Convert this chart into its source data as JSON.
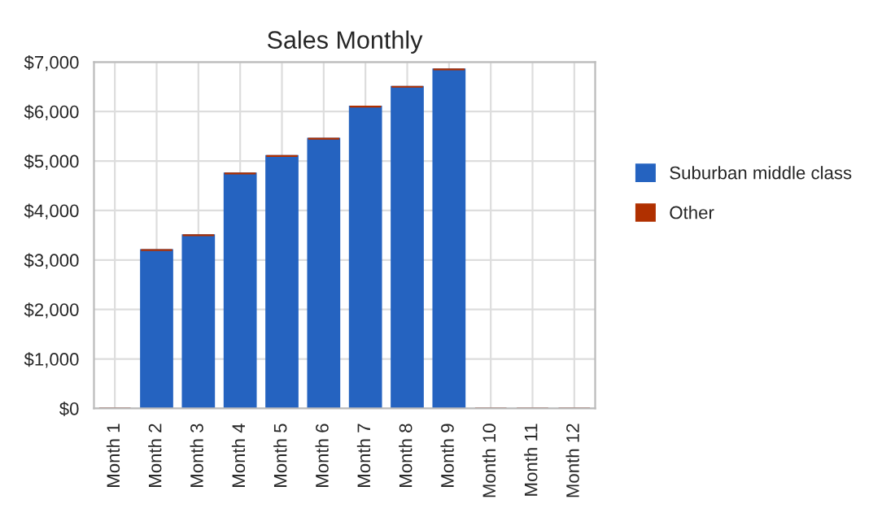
{
  "chart_data": {
    "type": "bar",
    "title": "Sales Monthly",
    "stacked": true,
    "categories": [
      "Month 1",
      "Month 2",
      "Month 3",
      "Month 4",
      "Month 5",
      "Month 6",
      "Month 7",
      "Month 8",
      "Month 9",
      "Month 10",
      "Month 11",
      "Month 12"
    ],
    "series": [
      {
        "name": "Suburban middle class",
        "color": "#2563c0",
        "values": [
          0,
          3200,
          3500,
          4750,
          5100,
          5450,
          6100,
          6500,
          6850,
          0,
          0,
          0
        ]
      },
      {
        "name": "Other",
        "color": "#b03000",
        "values": [
          0,
          0,
          0,
          0,
          0,
          0,
          0,
          0,
          0,
          0,
          0,
          0
        ]
      }
    ],
    "ylim": [
      0,
      7000
    ],
    "yticks": [
      {
        "value": 0,
        "label": "$0"
      },
      {
        "value": 1000,
        "label": "$1,000"
      },
      {
        "value": 2000,
        "label": "$2,000"
      },
      {
        "value": 3000,
        "label": "$3,000"
      },
      {
        "value": 4000,
        "label": "$4,000"
      },
      {
        "value": 5000,
        "label": "$5,000"
      },
      {
        "value": 6000,
        "label": "$6,000"
      },
      {
        "value": 7000,
        "label": "$7,000"
      }
    ],
    "grid": true,
    "legend": "right"
  }
}
